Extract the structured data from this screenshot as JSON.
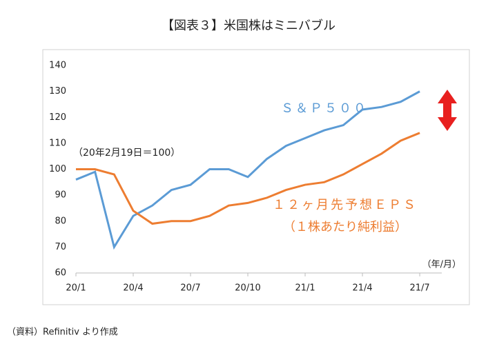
{
  "chart_data": {
    "type": "line",
    "title": "【図表３】米国株はミニバブル",
    "annotations": [
      "（20年2月19日＝100）",
      "（年/月）",
      "（１株あたり純利益）"
    ],
    "source": "（資料）Refinitiv より作成",
    "categories": [
      "20/1",
      null,
      null,
      "20/4",
      null,
      null,
      "20/7",
      null,
      null,
      "20/10",
      null,
      null,
      "21/1",
      null,
      null,
      "21/4",
      null,
      null,
      "21/7"
    ],
    "series": [
      {
        "name": "Ｓ＆Ｐ５００",
        "color": "#5b9bd5",
        "values": [
          96,
          99,
          70,
          82,
          86,
          92,
          94,
          100,
          100,
          97,
          104,
          109,
          112,
          115,
          117,
          123,
          124,
          126,
          130
        ]
      },
      {
        "name": "１２ヶ月先予想ＥＰＳ",
        "color": "#ed7d31",
        "values": [
          100,
          100,
          98,
          84,
          79,
          80,
          80,
          82,
          86,
          87,
          89,
          92,
          94,
          95,
          98,
          102,
          106,
          111,
          114
        ]
      }
    ],
    "ylim": [
      60,
      140
    ],
    "yticks": [
      60,
      70,
      80,
      90,
      100,
      110,
      120,
      130,
      140
    ],
    "grid": false
  }
}
